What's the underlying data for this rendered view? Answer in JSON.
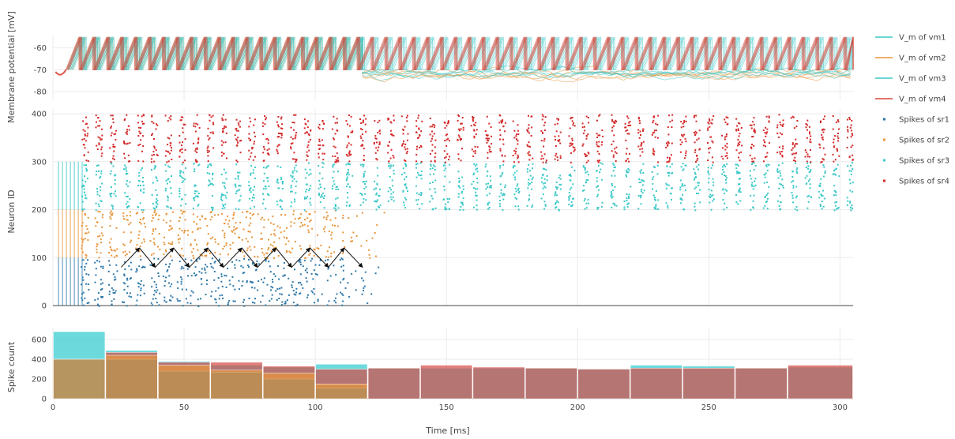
{
  "chart_data": [
    {
      "type": "line",
      "ylabel": "Membrane potential [mV]",
      "xlim": [
        0,
        305
      ],
      "ylim": [
        -84,
        -54
      ],
      "yticks": [
        -60,
        -70,
        -80
      ],
      "series": [
        {
          "name": "V_m of vm1",
          "color": "#3cc8c8"
        },
        {
          "name": "V_m of vm2",
          "color": "#e8963c"
        },
        {
          "name": "V_m of vm3",
          "color": "#3cc8c8"
        },
        {
          "name": "V_m of vm4",
          "color": "#d9473a"
        }
      ],
      "spike_threshold": -55,
      "reset_potential": -70,
      "firing_period_ms": 5.3,
      "vm1_vm2_regular_until_ms": 118
    },
    {
      "type": "scatter",
      "ylabel": "Neuron ID",
      "xlim": [
        0,
        305
      ],
      "ylim": [
        0,
        410
      ],
      "yticks": [
        0,
        100,
        200,
        300,
        400
      ],
      "series": [
        {
          "name": "Spikes of sr1",
          "color": "#2e78a8",
          "id_range": [
            0,
            100
          ],
          "t_range": [
            2,
            125
          ]
        },
        {
          "name": "Spikes of sr2",
          "color": "#e8963c",
          "id_range": [
            100,
            200
          ],
          "t_range": [
            2,
            125
          ]
        },
        {
          "name": "Spikes of sr3",
          "color": "#3cc8c8",
          "id_range": [
            200,
            300
          ],
          "t_range": [
            2,
            305
          ]
        },
        {
          "name": "Spikes of sr4",
          "color": "#d42a2a",
          "id_range": [
            300,
            400
          ],
          "t_range": [
            7,
            305
          ]
        }
      ],
      "burst_period_ms": 5.3,
      "arrow_times_ms": [
        26,
        33,
        39,
        46,
        52,
        59,
        65,
        72,
        78,
        85,
        91,
        98,
        105,
        111,
        118
      ]
    },
    {
      "type": "bar",
      "xlabel": "Time [ms]",
      "ylabel": "Spike count",
      "xlim": [
        0,
        305
      ],
      "ylim": [
        0,
        720
      ],
      "yticks": [
        0,
        200,
        400,
        600
      ],
      "xticks": [
        0,
        50,
        100,
        150,
        200,
        250,
        300
      ],
      "bin_edges": [
        0,
        20,
        40,
        60,
        80,
        100,
        120,
        140,
        160,
        180,
        200,
        220,
        240,
        260,
        280,
        305
      ],
      "series": [
        {
          "name": "sr3",
          "color": "#2ecbcf",
          "values": [
            680,
            490,
            380,
            340,
            320,
            350,
            310,
            310,
            310,
            310,
            300,
            340,
            330,
            310,
            320
          ]
        },
        {
          "name": "sr4",
          "color": "#d44a44",
          "values": [
            0,
            470,
            370,
            370,
            330,
            300,
            310,
            340,
            320,
            310,
            300,
            310,
            310,
            310,
            340
          ]
        },
        {
          "name": "sr1",
          "color": "#2e78a8",
          "values": [
            400,
            400,
            280,
            270,
            200,
            110,
            0,
            0,
            0,
            0,
            0,
            0,
            0,
            0,
            0
          ]
        },
        {
          "name": "sr2",
          "color": "#e8963c",
          "values": [
            400,
            440,
            340,
            290,
            260,
            150,
            0,
            0,
            0,
            0,
            0,
            0,
            0,
            0,
            0
          ]
        }
      ]
    }
  ]
}
